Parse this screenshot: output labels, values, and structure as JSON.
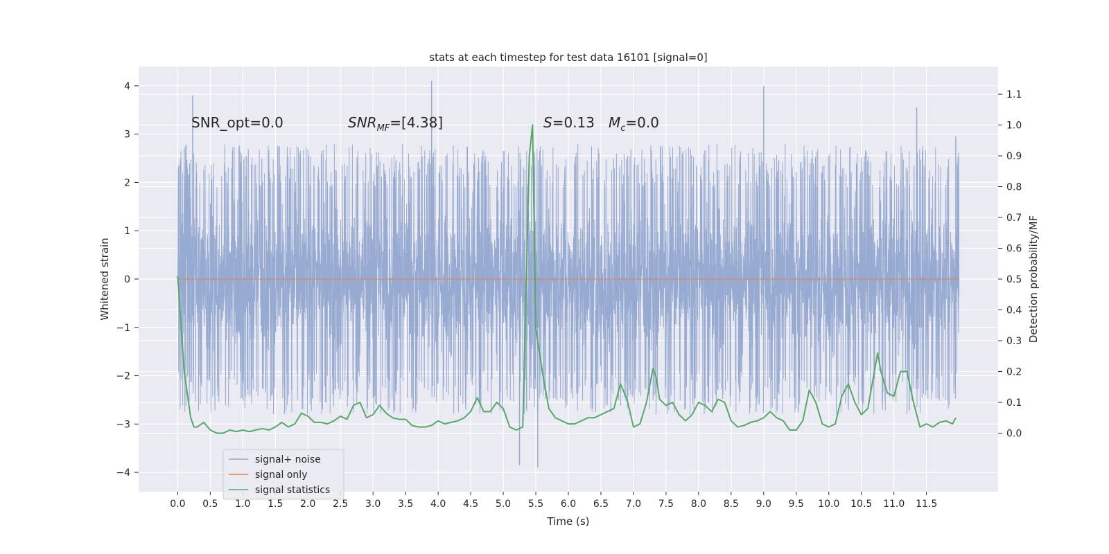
{
  "chart_data": {
    "type": "line",
    "title": "stats at each timestep for test data 16101 [signal=0]",
    "xlabel": "Time (s)",
    "ylabel_left": "Whitened strain",
    "ylabel_right": "Detection probability/MF",
    "xlim": [
      -0.6,
      12.6
    ],
    "ylim_left": [
      -4.4,
      4.4
    ],
    "ylim_right": [
      -0.19,
      1.19
    ],
    "x_ticks": [
      0.0,
      0.5,
      1.0,
      1.5,
      2.0,
      2.5,
      3.0,
      3.5,
      4.0,
      4.5,
      5.0,
      5.5,
      6.0,
      6.5,
      7.0,
      7.5,
      8.0,
      8.5,
      9.0,
      9.5,
      10.0,
      10.5,
      11.0,
      11.5
    ],
    "x_tick_labels": [
      "0.0",
      "0.5",
      "1.0",
      "1.5",
      "2.0",
      "2.5",
      "3.0",
      "3.5",
      "4.0",
      "4.5",
      "5.0",
      "5.5",
      "6.0",
      "6.5",
      "7.0",
      "7.5",
      "8.0",
      "8.5",
      "9.0",
      "9.5",
      "10.0",
      "10.5",
      "11.0",
      "11.5"
    ],
    "y_left_ticks": [
      -4,
      -3,
      -2,
      -1,
      0,
      1,
      2,
      3,
      4
    ],
    "y_left_tick_labels": [
      "−4",
      "−3",
      "−2",
      "−1",
      "0",
      "1",
      "2",
      "3",
      "4"
    ],
    "y_right_ticks": [
      0.0,
      0.1,
      0.2,
      0.3,
      0.4,
      0.5,
      0.6,
      0.7,
      0.8,
      0.9,
      1.0,
      1.1
    ],
    "y_right_tick_labels": [
      "0.0",
      "0.1",
      "0.2",
      "0.3",
      "0.4",
      "0.5",
      "0.6",
      "0.7",
      "0.8",
      "0.9",
      "1.0",
      "1.1"
    ],
    "grid": true,
    "legend_position": "lower-left",
    "annotations": {
      "snr_opt": "SNR_opt=0.0",
      "snr_mf_base": "SNR",
      "snr_mf_sub": "MF",
      "snr_mf_value": "=[4.38]",
      "s_var": "S",
      "s_value": "=0.13",
      "mc_var": "M",
      "mc_sub": "c",
      "mc_value": "=0.0"
    },
    "noise": {
      "x_range": [
        0.0,
        12.0
      ],
      "typical_envelope": [
        -2.0,
        2.0
      ],
      "observed_min": -3.9,
      "observed_max": 4.1,
      "peak_times": [
        0.23,
        3.9,
        9.0,
        11.35,
        11.95,
        5.53,
        5.25
      ],
      "peak_values": [
        3.8,
        4.1,
        4.0,
        3.55,
        2.95,
        -3.9,
        -3.85
      ]
    },
    "signal_only": {
      "x": [
        0.0,
        12.0
      ],
      "y": [
        0.0,
        0.0
      ]
    },
    "series": [
      {
        "name": "signal+ noise",
        "color": "#92a6cf",
        "kind": "noise"
      },
      {
        "name": "signal only",
        "color": "#dd8452",
        "kind": "signal"
      },
      {
        "name": "signal statistics",
        "color": "#55a868",
        "kind": "stats",
        "x": [
          0.0,
          0.1,
          0.2,
          0.25,
          0.3,
          0.4,
          0.5,
          0.6,
          0.7,
          0.8,
          0.9,
          1.0,
          1.1,
          1.2,
          1.3,
          1.4,
          1.5,
          1.6,
          1.7,
          1.8,
          1.9,
          2.0,
          2.1,
          2.2,
          2.3,
          2.4,
          2.5,
          2.6,
          2.7,
          2.8,
          2.9,
          3.0,
          3.1,
          3.2,
          3.3,
          3.4,
          3.5,
          3.6,
          3.7,
          3.8,
          3.9,
          4.0,
          4.1,
          4.2,
          4.3,
          4.4,
          4.5,
          4.6,
          4.7,
          4.8,
          4.9,
          5.0,
          5.1,
          5.2,
          5.3,
          5.4,
          5.45,
          5.5,
          5.6,
          5.7,
          5.8,
          5.9,
          6.0,
          6.1,
          6.2,
          6.3,
          6.4,
          6.5,
          6.6,
          6.7,
          6.8,
          6.9,
          7.0,
          7.1,
          7.2,
          7.3,
          7.35,
          7.4,
          7.5,
          7.6,
          7.7,
          7.8,
          7.9,
          8.0,
          8.1,
          8.2,
          8.3,
          8.4,
          8.5,
          8.6,
          8.7,
          8.8,
          8.9,
          9.0,
          9.1,
          9.2,
          9.3,
          9.4,
          9.5,
          9.6,
          9.7,
          9.8,
          9.9,
          10.0,
          10.1,
          10.2,
          10.3,
          10.4,
          10.5,
          10.6,
          10.7,
          10.75,
          10.8,
          10.9,
          11.0,
          11.1,
          11.2,
          11.3,
          11.4,
          11.5,
          11.6,
          11.7,
          11.8,
          11.9,
          11.95
        ],
        "y": [
          0.51,
          0.2,
          0.05,
          0.02,
          0.02,
          0.035,
          0.01,
          0.0,
          0.0,
          0.01,
          0.005,
          0.01,
          0.005,
          0.01,
          0.015,
          0.01,
          0.02,
          0.035,
          0.02,
          0.03,
          0.065,
          0.055,
          0.035,
          0.035,
          0.03,
          0.04,
          0.055,
          0.045,
          0.09,
          0.1,
          0.05,
          0.06,
          0.09,
          0.065,
          0.05,
          0.045,
          0.045,
          0.025,
          0.02,
          0.02,
          0.025,
          0.04,
          0.03,
          0.035,
          0.04,
          0.05,
          0.07,
          0.115,
          0.07,
          0.07,
          0.1,
          0.08,
          0.02,
          0.01,
          0.02,
          0.9,
          1.0,
          0.34,
          0.2,
          0.08,
          0.05,
          0.04,
          0.03,
          0.03,
          0.04,
          0.05,
          0.05,
          0.06,
          0.07,
          0.08,
          0.16,
          0.11,
          0.02,
          0.03,
          0.1,
          0.21,
          0.18,
          0.11,
          0.09,
          0.1,
          0.06,
          0.04,
          0.06,
          0.1,
          0.09,
          0.07,
          0.11,
          0.1,
          0.04,
          0.02,
          0.025,
          0.035,
          0.04,
          0.05,
          0.07,
          0.05,
          0.04,
          0.01,
          0.01,
          0.04,
          0.14,
          0.1,
          0.03,
          0.02,
          0.03,
          0.12,
          0.16,
          0.1,
          0.06,
          0.08,
          0.2,
          0.26,
          0.2,
          0.13,
          0.12,
          0.2,
          0.2,
          0.1,
          0.02,
          0.03,
          0.02,
          0.035,
          0.04,
          0.03,
          0.05
        ]
      }
    ]
  }
}
